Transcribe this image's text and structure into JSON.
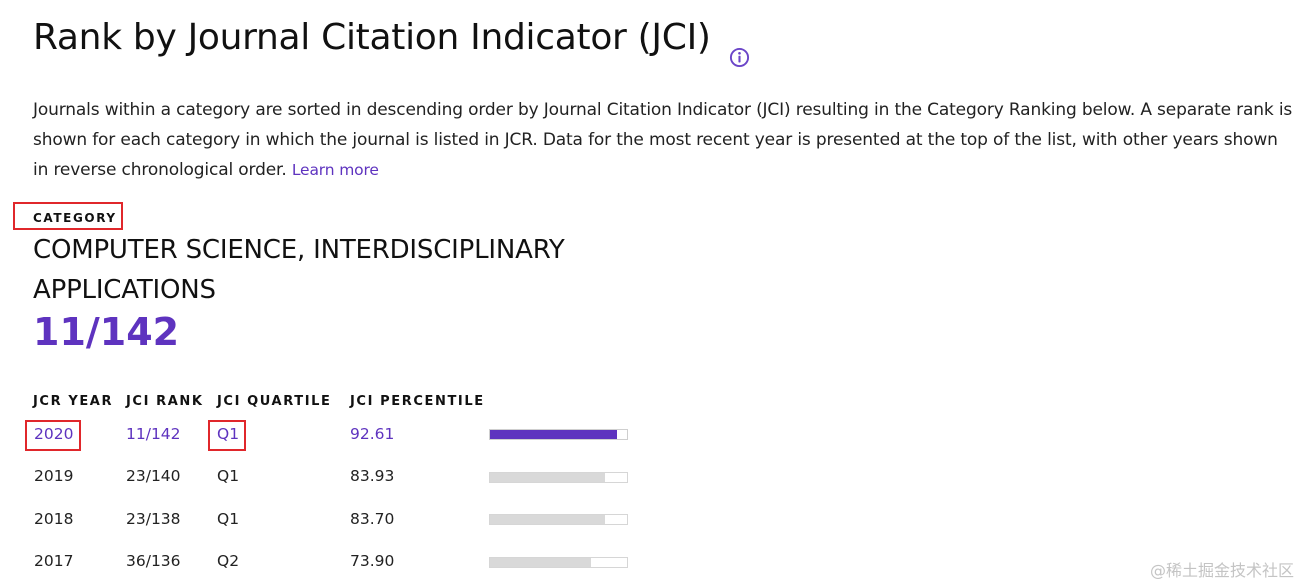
{
  "title": "Rank by Journal Citation Indicator (JCI)",
  "info_icon": "info-icon",
  "description": {
    "text": "Journals within a category are sorted in descending order by Journal Citation Indicator (JCI) resulting in the Category Ranking below. A separate rank is shown for each category in which the journal is listed in JCR. Data for the most recent year is presented at the top of the list, with other years shown in reverse chronological order.",
    "learn_more": "Learn more"
  },
  "category": {
    "label": "CATEGORY",
    "name_line1": "COMPUTER SCIENCE, INTERDISCIPLINARY",
    "name_line2": "APPLICATIONS",
    "rank": "11/142"
  },
  "table": {
    "headers": [
      "JCR YEAR",
      "JCI RANK",
      "JCI QUARTILE",
      "JCI PERCENTILE"
    ],
    "rows": [
      {
        "year": "2020",
        "rank": "11/142",
        "quartile": "Q1",
        "percentile": "92.61",
        "percentile_value": 92.61,
        "active": true
      },
      {
        "year": "2019",
        "rank": "23/140",
        "quartile": "Q1",
        "percentile": "83.93",
        "percentile_value": 83.93,
        "active": false
      },
      {
        "year": "2018",
        "rank": "23/138",
        "quartile": "Q1",
        "percentile": "83.70",
        "percentile_value": 83.7,
        "active": false
      },
      {
        "year": "2017",
        "rank": "36/136",
        "quartile": "Q2",
        "percentile": "73.90",
        "percentile_value": 73.9,
        "active": false
      }
    ]
  },
  "colors": {
    "accent": "#5e33bf",
    "highlight_box": "#e0272b",
    "bar_inactive": "#d9d9d9"
  },
  "watermark": "@稀土掘金技术社区"
}
